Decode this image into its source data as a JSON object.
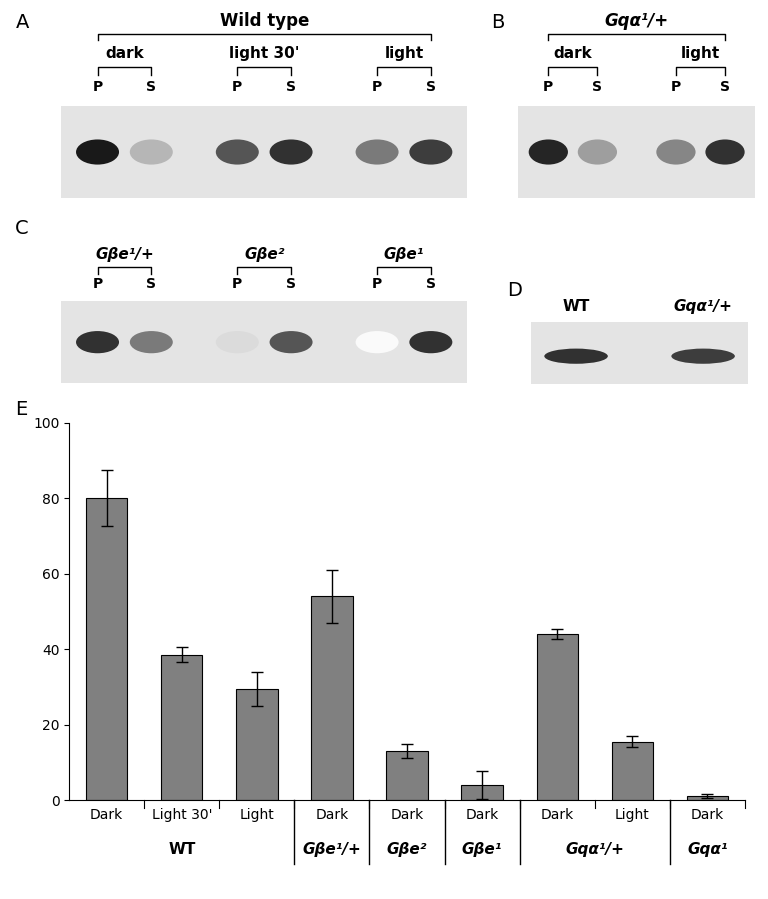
{
  "blots": [
    {
      "panel": "A",
      "header": "Wild type",
      "groups": [
        {
          "label": "dark",
          "lanes": [
            {
              "label": "P",
              "band": 0.95
            },
            {
              "label": "S",
              "band": 0.3
            }
          ]
        },
        {
          "label": "light 30'",
          "lanes": [
            {
              "label": "P",
              "band": 0.7
            },
            {
              "label": "S",
              "band": 0.85
            }
          ]
        },
        {
          "label": "light",
          "lanes": [
            {
              "label": "P",
              "band": 0.55
            },
            {
              "label": "S",
              "band": 0.8
            }
          ]
        }
      ]
    },
    {
      "panel": "B",
      "header": "Gqα¹/+",
      "groups": [
        {
          "label": "dark",
          "lanes": [
            {
              "label": "P",
              "band": 0.9
            },
            {
              "label": "S",
              "band": 0.4
            }
          ]
        },
        {
          "label": "light",
          "lanes": [
            {
              "label": "P",
              "band": 0.5
            },
            {
              "label": "S",
              "band": 0.85
            }
          ]
        }
      ]
    },
    {
      "panel": "C",
      "groups": [
        {
          "label": "Gβe¹/+",
          "lanes": [
            {
              "label": "P",
              "band": 0.85
            },
            {
              "label": "S",
              "band": 0.55
            }
          ]
        },
        {
          "label": "Gβe²",
          "lanes": [
            {
              "label": "P",
              "band": 0.15
            },
            {
              "label": "S",
              "band": 0.7
            }
          ]
        },
        {
          "label": "Gβe¹",
          "lanes": [
            {
              "label": "P",
              "band": 0.02
            },
            {
              "label": "S",
              "band": 0.85
            }
          ]
        }
      ]
    },
    {
      "panel": "D",
      "groups": [
        {
          "label": "WT",
          "lanes": [
            {
              "band": 0.85
            }
          ]
        },
        {
          "label": "Gqα¹/+",
          "lanes": [
            {
              "band": 0.8
            }
          ]
        }
      ]
    }
  ],
  "chart_data": {
    "panel": "E",
    "type": "bar",
    "categories": [
      "Dark",
      "Light 30'",
      "Light",
      "Dark",
      "Dark",
      "Dark",
      "Dark",
      "Light",
      "Dark"
    ],
    "groups": [
      "WT",
      "WT",
      "WT",
      "Gβe¹/+",
      "Gβe²",
      "Gβe¹",
      "Gqα¹/+",
      "Gqα¹/+",
      "Gqα¹"
    ],
    "values": [
      80,
      38.5,
      29.5,
      54,
      13,
      4,
      44,
      15.5,
      1
    ],
    "errors": [
      7.5,
      2,
      4.5,
      7,
      1.8,
      3.8,
      1.2,
      1.5,
      0.5
    ],
    "color": "#808080",
    "ylim": [
      0,
      100
    ],
    "yticks": [
      0,
      20,
      40,
      60,
      80,
      100
    ]
  }
}
